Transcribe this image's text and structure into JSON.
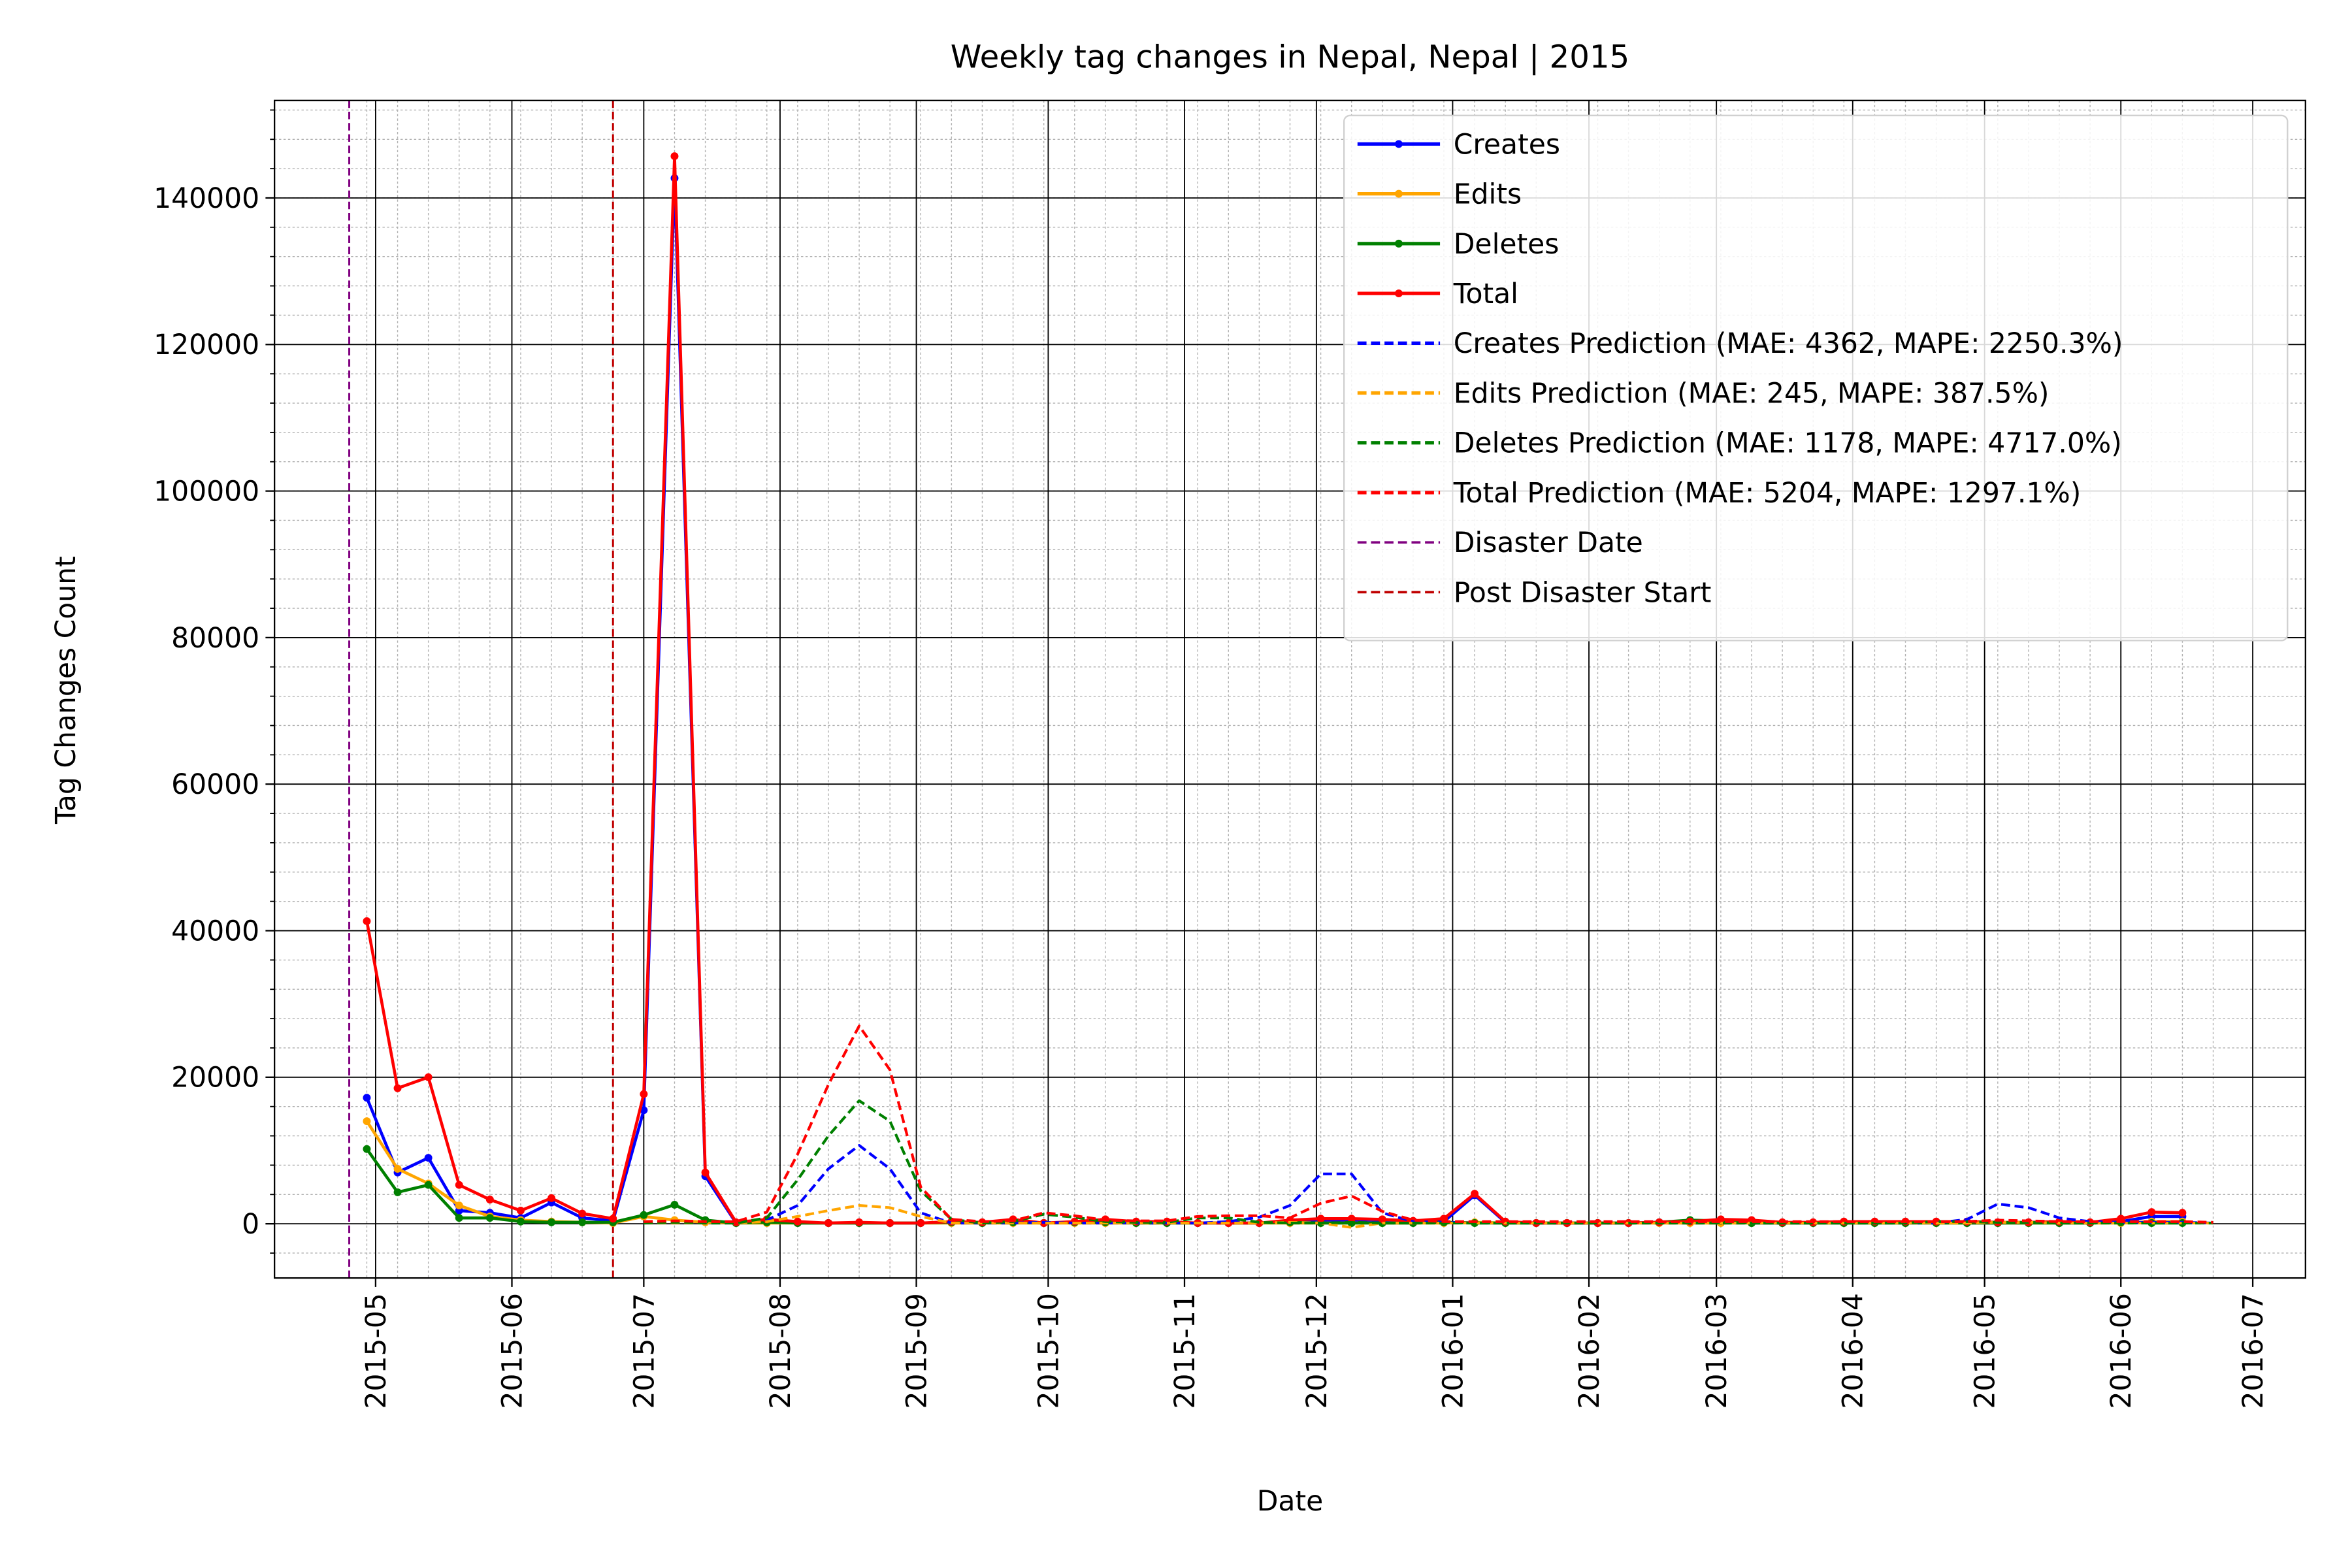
{
  "chart_data": {
    "type": "line",
    "title": "Weekly tag changes in Nepal, Nepal | 2015",
    "xlabel": "Date",
    "ylabel": "Tag Changes Count",
    "x": [
      "2015-04-29",
      "2015-05-06",
      "2015-05-13",
      "2015-05-20",
      "2015-05-27",
      "2015-06-03",
      "2015-06-10",
      "2015-06-17",
      "2015-06-24",
      "2015-07-01",
      "2015-07-08",
      "2015-07-15",
      "2015-07-22",
      "2015-07-29",
      "2015-08-05",
      "2015-08-12",
      "2015-08-19",
      "2015-08-26",
      "2015-09-02",
      "2015-09-09",
      "2015-09-16",
      "2015-09-23",
      "2015-09-30",
      "2015-10-07",
      "2015-10-14",
      "2015-10-21",
      "2015-10-28",
      "2015-11-04",
      "2015-11-11",
      "2015-11-18",
      "2015-11-25",
      "2015-12-02",
      "2015-12-09",
      "2015-12-16",
      "2015-12-23",
      "2015-12-30",
      "2016-01-06",
      "2016-01-13",
      "2016-01-20",
      "2016-01-27",
      "2016-02-03",
      "2016-02-10",
      "2016-02-17",
      "2016-02-24",
      "2016-03-02",
      "2016-03-09",
      "2016-03-16",
      "2016-03-23",
      "2016-03-30",
      "2016-04-06",
      "2016-04-13",
      "2016-04-20",
      "2016-04-27",
      "2016-05-04",
      "2016-05-11",
      "2016-05-18",
      "2016-05-25",
      "2016-06-01",
      "2016-06-08",
      "2016-06-15",
      "2016-06-22"
    ],
    "series": [
      {
        "name": "Creates",
        "color": "#0000ff",
        "dash": false,
        "values": [
          17200,
          7000,
          9000,
          1800,
          1500,
          800,
          2900,
          800,
          400,
          15500,
          142700,
          6500,
          100,
          200,
          100,
          100,
          100,
          100,
          100,
          200,
          100,
          300,
          100,
          200,
          300,
          200,
          200,
          100,
          100,
          100,
          200,
          300,
          300,
          200,
          100,
          300,
          3900,
          200,
          100,
          100,
          100,
          100,
          200,
          300,
          300,
          100,
          100,
          100,
          200,
          200,
          100,
          200,
          100,
          100,
          200,
          100,
          100,
          300,
          1000,
          1000,
          null
        ]
      },
      {
        "name": "Edits",
        "color": "#ffa500",
        "dash": false,
        "values": [
          14000,
          7500,
          5500,
          2500,
          1000,
          500,
          300,
          200,
          100,
          1000,
          500,
          200,
          100,
          100,
          100,
          100,
          100,
          100,
          100,
          100,
          100,
          100,
          100,
          100,
          100,
          100,
          100,
          100,
          100,
          100,
          100,
          100,
          100,
          100,
          100,
          100,
          200,
          100,
          100,
          100,
          100,
          100,
          100,
          100,
          100,
          100,
          100,
          100,
          100,
          100,
          100,
          100,
          100,
          100,
          100,
          100,
          100,
          100,
          300,
          300,
          null
        ]
      },
      {
        "name": "Deletes",
        "color": "#008000",
        "dash": false,
        "values": [
          10200,
          4300,
          5300,
          800,
          800,
          300,
          200,
          200,
          200,
          1200,
          2600,
          500,
          100,
          200,
          100,
          100,
          100,
          100,
          100,
          200,
          100,
          200,
          100,
          200,
          200,
          100,
          100,
          100,
          100,
          100,
          200,
          100,
          100,
          100,
          100,
          200,
          100,
          100,
          100,
          100,
          100,
          100,
          200,
          500,
          400,
          100,
          100,
          100,
          100,
          100,
          100,
          100,
          100,
          100,
          100,
          100,
          100,
          200,
          100,
          100,
          null
        ]
      },
      {
        "name": "Total",
        "color": "#ff0000",
        "dash": false,
        "values": [
          41300,
          18500,
          20000,
          5300,
          3300,
          1800,
          3500,
          1400,
          700,
          17700,
          145700,
          7000,
          200,
          600,
          300,
          100,
          200,
          100,
          100,
          300,
          200,
          600,
          100,
          300,
          600,
          300,
          300,
          100,
          100,
          100,
          500,
          700,
          700,
          600,
          400,
          700,
          4100,
          300,
          100,
          100,
          100,
          100,
          200,
          300,
          600,
          500,
          200,
          200,
          300,
          300,
          300,
          300,
          300,
          200,
          200,
          300,
          200,
          700,
          1600,
          1500,
          null
        ]
      },
      {
        "name": "Creates Prediction (MAE: 4362, MAPE: 2250.3%)",
        "color": "#0000ff",
        "dash": true,
        "values": [
          null,
          null,
          null,
          null,
          null,
          null,
          null,
          null,
          null,
          100,
          100,
          100,
          100,
          500,
          2500,
          7500,
          10700,
          7500,
          1500,
          100,
          100,
          100,
          200,
          100,
          100,
          100,
          100,
          100,
          300,
          900,
          2500,
          6800,
          6800,
          1500,
          300,
          200,
          100,
          100,
          100,
          100,
          100,
          100,
          100,
          100,
          100,
          100,
          100,
          100,
          100,
          100,
          100,
          100,
          600,
          2700,
          2200,
          800,
          300,
          200,
          200,
          200,
          100
        ]
      },
      {
        "name": "Edits Prediction (MAE: 245, MAPE: 387.5%)",
        "color": "#ffa500",
        "dash": true,
        "values": [
          null,
          null,
          null,
          null,
          null,
          null,
          null,
          null,
          null,
          100,
          100,
          100,
          100,
          300,
          1000,
          1800,
          2500,
          2200,
          1000,
          100,
          100,
          100,
          100,
          100,
          100,
          100,
          100,
          100,
          100,
          100,
          200,
          100,
          -500,
          100,
          100,
          100,
          100,
          100,
          100,
          100,
          100,
          100,
          100,
          100,
          100,
          100,
          100,
          100,
          100,
          100,
          100,
          100,
          100,
          200,
          200,
          100,
          100,
          100,
          100,
          100,
          100
        ]
      },
      {
        "name": "Deletes Prediction (MAE: 1178, MAPE: 4717.0%)",
        "color": "#008000",
        "dash": true,
        "values": [
          null,
          null,
          null,
          null,
          null,
          null,
          null,
          null,
          null,
          100,
          200,
          100,
          100,
          800,
          6000,
          12000,
          16800,
          14000,
          4500,
          600,
          100,
          300,
          1300,
          900,
          300,
          200,
          200,
          800,
          800,
          200,
          100,
          100,
          200,
          100,
          100,
          100,
          100,
          100,
          100,
          100,
          100,
          100,
          100,
          100,
          100,
          100,
          100,
          100,
          100,
          100,
          100,
          300,
          300,
          200,
          200,
          100,
          100,
          100,
          100,
          100,
          100
        ]
      },
      {
        "name": "Total Prediction (MAE: 5204, MAPE: 1297.1%)",
        "color": "#ff0000",
        "dash": true,
        "values": [
          null,
          null,
          null,
          null,
          null,
          null,
          null,
          null,
          null,
          300,
          400,
          300,
          300,
          1600,
          9500,
          19000,
          27000,
          21000,
          5000,
          600,
          300,
          400,
          1500,
          1100,
          500,
          400,
          400,
          1000,
          1100,
          1100,
          800,
          2800,
          3800,
          1700,
          500,
          300,
          300,
          300,
          300,
          300,
          300,
          300,
          300,
          300,
          300,
          300,
          300,
          300,
          300,
          300,
          300,
          300,
          300,
          500,
          400,
          300,
          300,
          300,
          300,
          300,
          200
        ]
      }
    ],
    "vlines": [
      {
        "name": "Disaster Date",
        "x": "2015-04-25",
        "color": "#800080"
      },
      {
        "name": "Post Disaster Start",
        "x": "2015-06-24",
        "color": "#c00000"
      }
    ],
    "xlim": [
      "2015-04-08",
      "2016-07-13"
    ],
    "xticks": [
      "2015-05",
      "2015-06",
      "2015-07",
      "2015-08",
      "2015-09",
      "2015-10",
      "2015-11",
      "2015-12",
      "2016-01",
      "2016-02",
      "2016-03",
      "2016-04",
      "2016-05",
      "2016-06",
      "2016-07"
    ],
    "ylim": [
      -7400,
      153300
    ],
    "yticks": [
      0,
      20000,
      40000,
      60000,
      80000,
      100000,
      120000,
      140000
    ],
    "grid": true,
    "minor_grid": true,
    "legend": "upper right"
  }
}
